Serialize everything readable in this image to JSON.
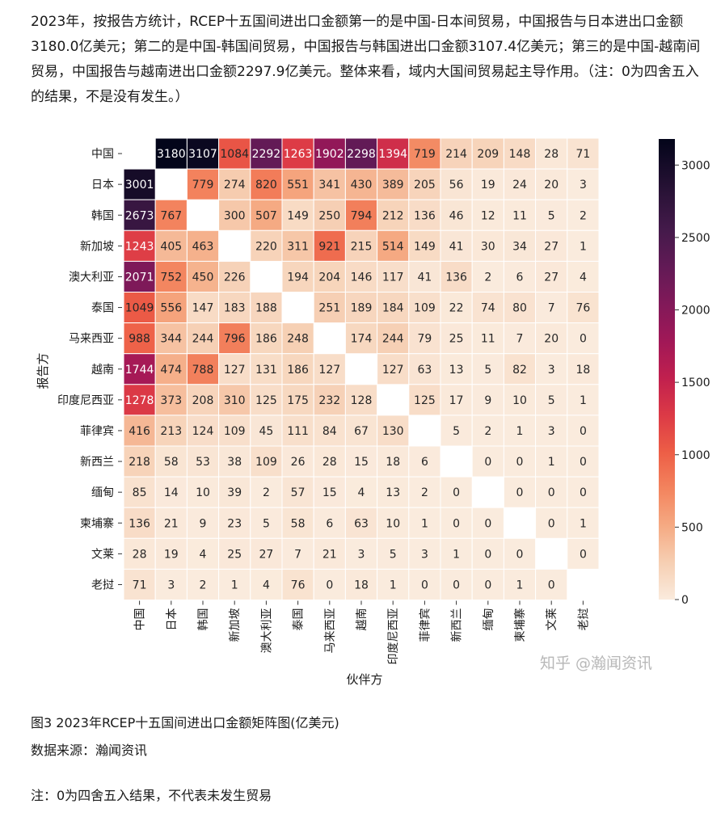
{
  "article": {
    "intro": "2023年，按报告方统计，RCEP十五国间进出口金额第一的是中国-日本间贸易，中国报告与日本进出口金额3180.0亿美元；第二的是中国-韩国间贸易，中国报告与韩国进出口金额3107.4亿美元；第三的是中国-越南间贸易，中国报告与越南进出口金额2297.9亿美元。整体来看，域内大国间贸易起主导作用。（注：0为四舍五入的结果，不是没有发生。）",
    "caption": "图3 2023年RCEP十五国间进出口金额矩阵图(亿美元)",
    "source": "数据来源：瀚闻资讯",
    "note": "注：0为四舍五入结果，不代表未发生贸易",
    "watermark": "知乎 @瀚闻资讯"
  },
  "chart_data": {
    "type": "heatmap",
    "title": "",
    "xlabel": "伙伴方",
    "ylabel": "报告方",
    "categories": [
      "中国",
      "日本",
      "韩国",
      "新加坡",
      "澳大利亚",
      "泰国",
      "马来西亚",
      "越南",
      "印度尼西亚",
      "菲律宾",
      "新西兰",
      "缅甸",
      "柬埔寨",
      "文莱",
      "老挝"
    ],
    "values": [
      [
        null,
        3180,
        3107,
        1084,
        2292,
        1263,
        1902,
        2298,
        1394,
        719,
        214,
        209,
        148,
        28,
        71
      ],
      [
        3001,
        null,
        779,
        274,
        820,
        551,
        341,
        430,
        389,
        205,
        56,
        19,
        24,
        20,
        3
      ],
      [
        2673,
        767,
        null,
        300,
        507,
        149,
        250,
        794,
        212,
        136,
        46,
        12,
        11,
        5,
        2
      ],
      [
        1243,
        405,
        463,
        null,
        220,
        311,
        921,
        215,
        514,
        149,
        41,
        30,
        34,
        27,
        1
      ],
      [
        2071,
        752,
        450,
        226,
        null,
        194,
        204,
        146,
        117,
        41,
        136,
        2,
        6,
        27,
        4
      ],
      [
        1049,
        556,
        147,
        183,
        188,
        null,
        251,
        189,
        184,
        109,
        22,
        74,
        80,
        7,
        76
      ],
      [
        988,
        344,
        244,
        796,
        186,
        248,
        null,
        174,
        244,
        79,
        25,
        11,
        7,
        20,
        0
      ],
      [
        1744,
        474,
        788,
        127,
        131,
        186,
        127,
        null,
        127,
        63,
        13,
        5,
        82,
        3,
        18
      ],
      [
        1278,
        373,
        208,
        310,
        125,
        175,
        232,
        128,
        null,
        125,
        17,
        9,
        10,
        5,
        1
      ],
      [
        416,
        213,
        124,
        109,
        45,
        111,
        84,
        67,
        130,
        null,
        5,
        2,
        1,
        3,
        0
      ],
      [
        218,
        58,
        53,
        38,
        109,
        26,
        28,
        15,
        18,
        6,
        null,
        0,
        0,
        1,
        0
      ],
      [
        85,
        14,
        10,
        39,
        2,
        57,
        15,
        4,
        13,
        2,
        0,
        null,
        0,
        0,
        0
      ],
      [
        136,
        21,
        9,
        23,
        5,
        58,
        6,
        63,
        10,
        1,
        0,
        0,
        null,
        0,
        1
      ],
      [
        28,
        19,
        4,
        25,
        27,
        7,
        21,
        3,
        5,
        3,
        1,
        0,
        0,
        null,
        0
      ],
      [
        71,
        3,
        2,
        1,
        4,
        76,
        0,
        18,
        1,
        0,
        0,
        0,
        1,
        0,
        null
      ]
    ],
    "colorbar": {
      "min": 0,
      "max": 3180,
      "ticks": [
        0,
        500,
        1000,
        1500,
        2000,
        2500,
        3000
      ]
    },
    "colormap": "rocket_r",
    "grid": true,
    "legend": "colorbar-right"
  }
}
